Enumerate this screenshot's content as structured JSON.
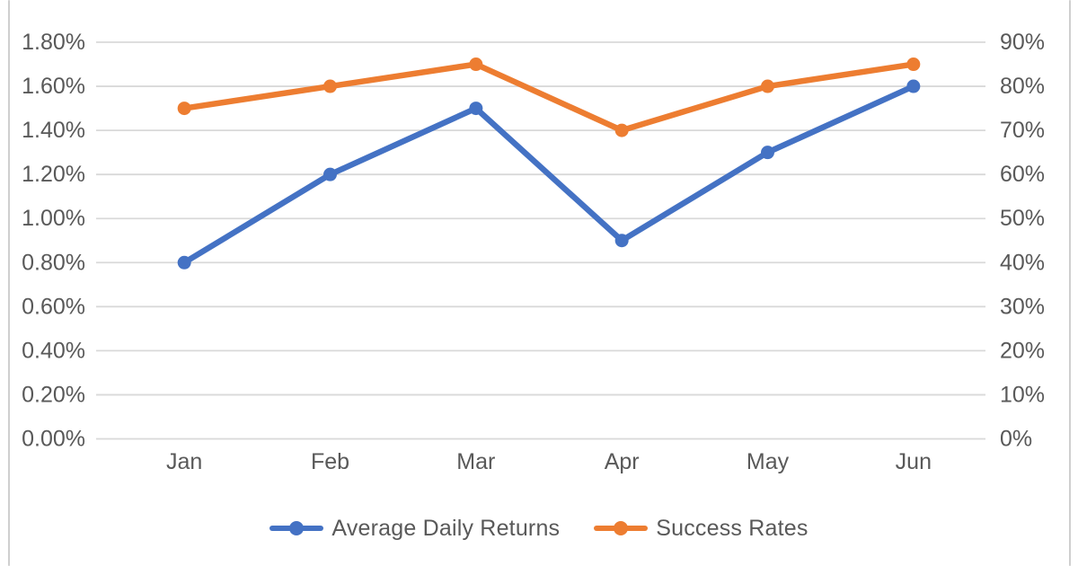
{
  "chart_data": {
    "type": "line",
    "categories": [
      "Jan",
      "Feb",
      "Mar",
      "Apr",
      "May",
      "Jun"
    ],
    "series": [
      {
        "name": "Average Daily Returns",
        "axis": "left",
        "color": "#4472C4",
        "values": [
          0.8,
          1.2,
          1.5,
          0.9,
          1.3,
          1.6
        ],
        "unit": "%"
      },
      {
        "name": "Success Rates",
        "axis": "right",
        "color": "#ED7D31",
        "values": [
          75,
          80,
          85,
          70,
          80,
          85
        ],
        "unit": "%"
      }
    ],
    "left_axis": {
      "min": 0,
      "max": 1.8,
      "step": 0.2,
      "tick_labels": [
        "1.80%",
        "1.60%",
        "1.40%",
        "1.20%",
        "1.00%",
        "0.80%",
        "0.60%",
        "0.40%",
        "0.20%",
        "0.00%"
      ]
    },
    "right_axis": {
      "min": 0,
      "max": 90,
      "step": 10,
      "tick_labels": [
        "90%",
        "80%",
        "70%",
        "60%",
        "50%",
        "40%",
        "30%",
        "20%",
        "10%",
        "0%"
      ]
    },
    "title": "",
    "xlabel": "",
    "ylabel": "",
    "grid": true,
    "legend_position": "bottom"
  },
  "legend": {
    "items": [
      {
        "label": "Average Daily Returns",
        "color": "#4472C4"
      },
      {
        "label": "Success Rates",
        "color": "#ED7D31"
      }
    ]
  },
  "colors": {
    "series_blue": "#4472C4",
    "series_orange": "#ED7D31",
    "gridline": "#D9D9D9",
    "axis_text": "#595959",
    "frame_border": "#CFCFCF",
    "background": "#FFFFFF"
  }
}
